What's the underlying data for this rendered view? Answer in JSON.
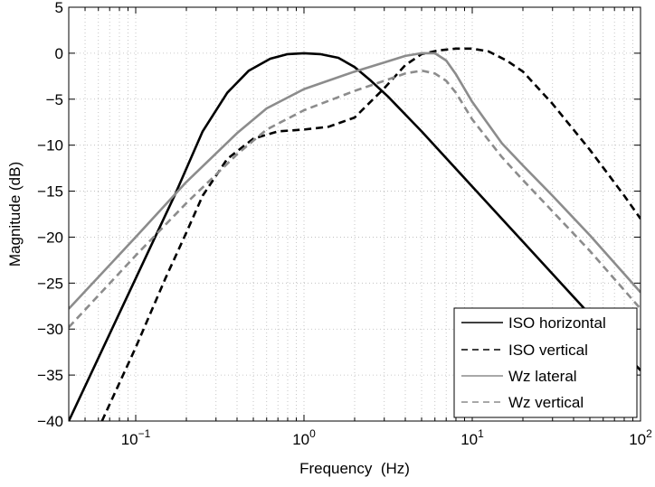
{
  "chart_data": {
    "type": "line",
    "title": "",
    "xlabel": "Frequency  (Hz)",
    "ylabel": "Magnitude (dB)",
    "x_scale": "log",
    "xlim": [
      0.04,
      100
    ],
    "ylim": [
      -40,
      5
    ],
    "grid": true,
    "legend_position": "bottom-right",
    "x_ticks": [
      {
        "value": 0.1,
        "base": "10",
        "exp": "−1"
      },
      {
        "value": 1,
        "base": "10",
        "exp": "0"
      },
      {
        "value": 10,
        "base": "10",
        "exp": "1"
      },
      {
        "value": 100,
        "base": "10",
        "exp": "2"
      }
    ],
    "y_ticks": [
      {
        "value": 5,
        "label": "5"
      },
      {
        "value": 0,
        "label": "0"
      },
      {
        "value": -5,
        "label": "−5"
      },
      {
        "value": -10,
        "label": "−10"
      },
      {
        "value": -15,
        "label": "−15"
      },
      {
        "value": -20,
        "label": "−20"
      },
      {
        "value": -25,
        "label": "−25"
      },
      {
        "value": -30,
        "label": "−30"
      },
      {
        "value": -35,
        "label": "−35"
      },
      {
        "value": -40,
        "label": "−40"
      }
    ],
    "series": [
      {
        "name": "ISO horizontal",
        "color": "#000000",
        "dash": "solid",
        "x": [
          0.04,
          0.1,
          0.17,
          0.25,
          0.35,
          0.47,
          0.63,
          0.8,
          1.0,
          1.25,
          1.6,
          2.0,
          2.5,
          3.15,
          5,
          10,
          20,
          40,
          60,
          80,
          100
        ],
        "y": [
          -40,
          -24.5,
          -15.5,
          -8.5,
          -4.3,
          -1.9,
          -0.6,
          -0.1,
          0.0,
          -0.1,
          -0.5,
          -1.5,
          -3.0,
          -4.7,
          -8.5,
          -14.5,
          -20.5,
          -26.5,
          -30.0,
          -32.5,
          -34.5
        ]
      },
      {
        "name": "ISO vertical",
        "color": "#000000",
        "dash": "dashed",
        "x": [
          0.063,
          0.1,
          0.15,
          0.2,
          0.25,
          0.35,
          0.5,
          0.7,
          1.0,
          1.4,
          2.0,
          3.0,
          4.0,
          5.0,
          6.3,
          8.0,
          10,
          12.5,
          16,
          20,
          30,
          50,
          80,
          100
        ],
        "y": [
          -40,
          -32,
          -24.5,
          -19.5,
          -15.5,
          -11.5,
          -9.3,
          -8.5,
          -8.3,
          -8.0,
          -7.0,
          -3.8,
          -1.3,
          -0.1,
          0.3,
          0.5,
          0.5,
          0.2,
          -0.8,
          -2.0,
          -5.5,
          -10.5,
          -15.5,
          -18.0
        ]
      },
      {
        "name": "Wz lateral",
        "color": "#8c8c8c",
        "dash": "solid",
        "x": [
          0.04,
          0.1,
          0.2,
          0.4,
          0.6,
          1.0,
          2.0,
          3.0,
          4.0,
          5.0,
          6.0,
          7.0,
          8.0,
          10,
          15,
          20,
          30,
          50,
          100
        ],
        "y": [
          -27.8,
          -20.0,
          -14.0,
          -8.7,
          -6.0,
          -3.9,
          -2.0,
          -1.0,
          -0.3,
          0.0,
          0.0,
          -0.8,
          -2.3,
          -5.3,
          -9.8,
          -12.2,
          -15.5,
          -19.8,
          -26.0
        ]
      },
      {
        "name": "Wz vertical",
        "color": "#8c8c8c",
        "dash": "dashed",
        "x": [
          0.04,
          0.1,
          0.2,
          0.4,
          0.6,
          1.0,
          2.0,
          3.0,
          4.0,
          5.0,
          6.0,
          7.0,
          8.0,
          10,
          15,
          20,
          30,
          50,
          100
        ],
        "y": [
          -29.8,
          -22.0,
          -16.3,
          -11.0,
          -8.3,
          -6.2,
          -4.1,
          -3.0,
          -2.2,
          -1.9,
          -2.2,
          -3.0,
          -4.3,
          -7.2,
          -11.3,
          -13.8,
          -17.2,
          -21.5,
          -27.8
        ]
      }
    ]
  }
}
